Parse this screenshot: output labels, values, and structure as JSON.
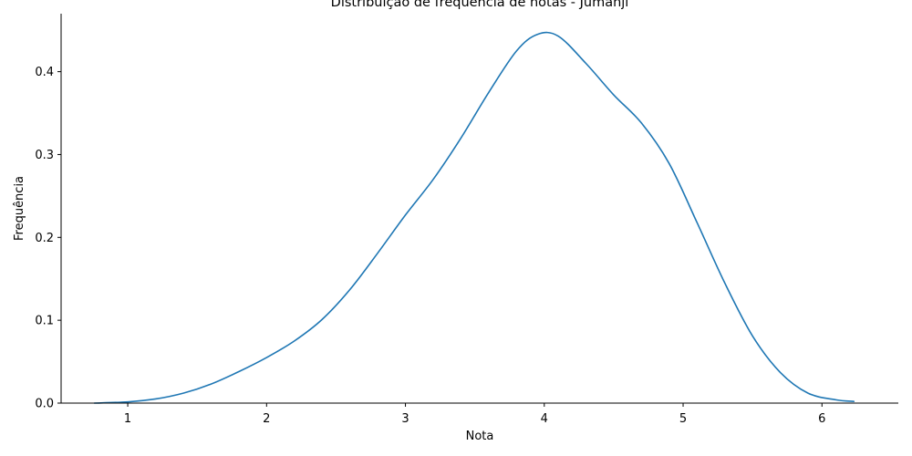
{
  "chart_data": {
    "type": "line",
    "title": "Distribuição de frequência de notas - Jumanji",
    "xlabel": "Nota",
    "ylabel": "Frequência",
    "xlim": [
      0.52,
      6.55
    ],
    "ylim": [
      0,
      0.47
    ],
    "xticks": [
      1,
      2,
      3,
      4,
      5,
      6
    ],
    "xtick_labels": [
      "1",
      "2",
      "3",
      "4",
      "5",
      "6"
    ],
    "yticks": [
      0.0,
      0.1,
      0.2,
      0.3,
      0.4
    ],
    "ytick_labels": [
      "0.0",
      "0.1",
      "0.2",
      "0.3",
      "0.4"
    ],
    "grid": false,
    "legend": null,
    "series": [
      {
        "color": "#1f77b4",
        "x": [
          0.76,
          1.0,
          1.2,
          1.4,
          1.6,
          1.8,
          2.0,
          2.2,
          2.4,
          2.6,
          2.8,
          3.0,
          3.2,
          3.4,
          3.6,
          3.8,
          3.95,
          4.1,
          4.3,
          4.5,
          4.7,
          4.9,
          5.1,
          5.3,
          5.5,
          5.7,
          5.9,
          6.1,
          6.23
        ],
        "y": [
          0.0,
          0.0015,
          0.005,
          0.012,
          0.023,
          0.038,
          0.055,
          0.075,
          0.101,
          0.137,
          0.181,
          0.227,
          0.27,
          0.32,
          0.375,
          0.425,
          0.445,
          0.443,
          0.41,
          0.372,
          0.338,
          0.289,
          0.218,
          0.145,
          0.081,
          0.037,
          0.012,
          0.004,
          0.002
        ]
      }
    ]
  }
}
